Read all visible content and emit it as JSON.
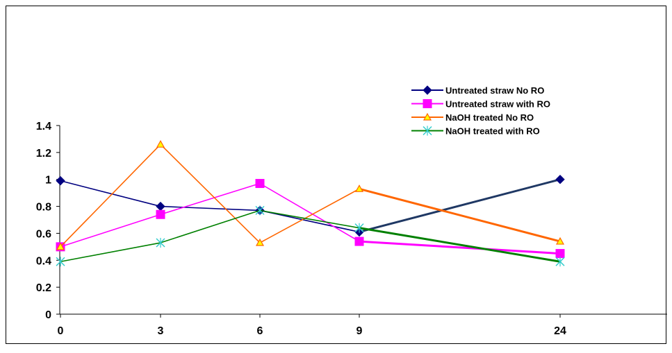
{
  "chart_data": {
    "type": "line",
    "categories": [
      "0",
      "3",
      "6",
      "9",
      "24"
    ],
    "ylim": [
      0,
      1.4
    ],
    "yticks": [
      "0",
      "0.2",
      "0.4",
      "0.6",
      "0.8",
      "1",
      "1.2",
      "1.4"
    ],
    "grid": false,
    "legend_position": "top-right",
    "series": [
      {
        "name": "Untreated straw  No RO",
        "values": [
          0.99,
          0.8,
          0.77,
          0.61,
          1.0
        ],
        "color": "#000080",
        "marker": "diamond"
      },
      {
        "name": "Untreated straw  with RO",
        "values": [
          0.5,
          0.74,
          0.97,
          0.54,
          0.45
        ],
        "color": "#FF00FF",
        "marker": "square"
      },
      {
        "name": "NaOH treated No RO",
        "values": [
          0.5,
          1.26,
          0.53,
          0.93,
          0.54
        ],
        "color": "#FF6600",
        "marker": "triangle"
      },
      {
        "name": "NaOH treated with RO",
        "values": [
          0.39,
          0.53,
          0.77,
          0.64,
          0.39
        ],
        "color": "#008000",
        "marker": "x"
      }
    ]
  }
}
